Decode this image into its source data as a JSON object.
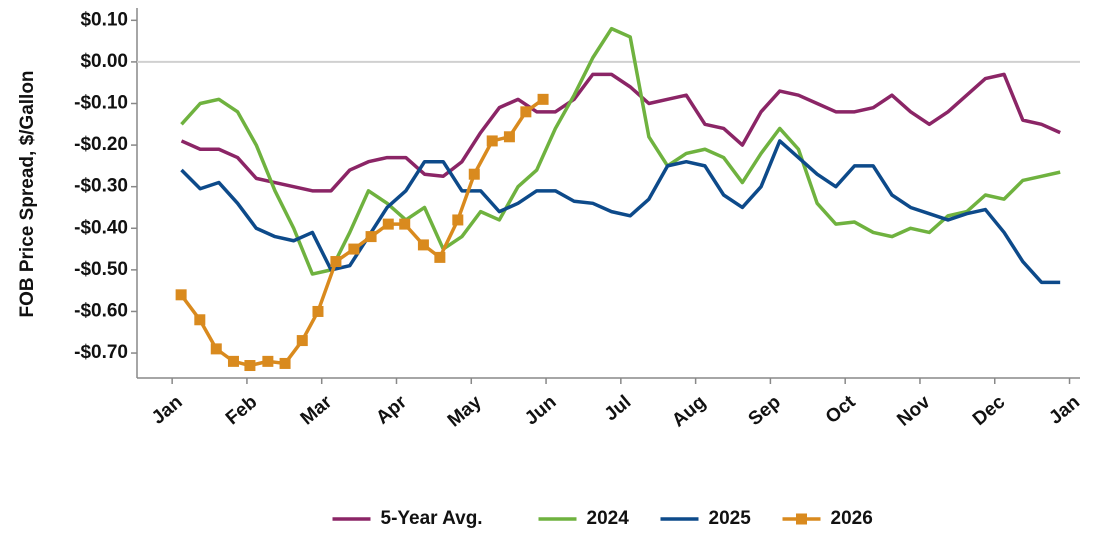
{
  "chart_data": {
    "type": "line",
    "y_label": "FOB Price Spread, $/Gallon",
    "xlim": [
      -0.47,
      12.14
    ],
    "xticks": [
      {
        "value": 0,
        "label": "Jan"
      },
      {
        "value": 1,
        "label": "Feb"
      },
      {
        "value": 2,
        "label": "Mar"
      },
      {
        "value": 3,
        "label": "Apr"
      },
      {
        "value": 4,
        "label": "May"
      },
      {
        "value": 5,
        "label": "Jun"
      },
      {
        "value": 6,
        "label": "Jul"
      },
      {
        "value": 7,
        "label": "Aug"
      },
      {
        "value": 8,
        "label": "Sep"
      },
      {
        "value": 9,
        "label": "Oct"
      },
      {
        "value": 10,
        "label": "Nov"
      },
      {
        "value": 11,
        "label": "Dec"
      },
      {
        "value": 12,
        "label": "Jan"
      }
    ],
    "ylim": [
      -0.76,
      0.12
    ],
    "yticks": [
      {
        "value": 0.1,
        "label": "$0.10"
      },
      {
        "value": 0,
        "label": "$0.00"
      },
      {
        "value": -0.1,
        "label": "-$0.10"
      },
      {
        "value": -0.2,
        "label": "-$0.20"
      },
      {
        "value": -0.3,
        "label": "-$0.30"
      },
      {
        "value": -0.4,
        "label": "-$0.40"
      },
      {
        "value": -0.5,
        "label": "-$0.50"
      },
      {
        "value": -0.6,
        "label": "-$0.60"
      },
      {
        "value": -0.7,
        "label": "-$0.70"
      }
    ],
    "zero_line": true,
    "legend": "bottom",
    "series": [
      {
        "name": "5-Year Avg.",
        "color": "#8b2566",
        "marker": false,
        "x": [
          0.125,
          0.375,
          0.625,
          0.875,
          1.125,
          1.375,
          1.625,
          1.875,
          2.125,
          2.375,
          2.625,
          2.875,
          3.125,
          3.375,
          3.625,
          3.875,
          4.125,
          4.375,
          4.625,
          4.875,
          5.125,
          5.375,
          5.625,
          5.875,
          6.125,
          6.375,
          6.625,
          6.875,
          7.125,
          7.375,
          7.625,
          7.875,
          8.125,
          8.375,
          8.625,
          8.875,
          9.125,
          9.375,
          9.625,
          9.875,
          10.125,
          10.375,
          10.625,
          10.875,
          11.125,
          11.375,
          11.625,
          11.875
        ],
        "values": [
          -0.19,
          -0.21,
          -0.21,
          -0.23,
          -0.28,
          -0.29,
          -0.3,
          -0.31,
          -0.31,
          -0.26,
          -0.24,
          -0.23,
          -0.23,
          -0.27,
          -0.275,
          -0.24,
          -0.17,
          -0.11,
          -0.09,
          -0.12,
          -0.12,
          -0.09,
          -0.03,
          -0.03,
          -0.06,
          -0.1,
          -0.09,
          -0.08,
          -0.15,
          -0.16,
          -0.2,
          -0.12,
          -0.07,
          -0.08,
          -0.1,
          -0.12,
          -0.12,
          -0.11,
          -0.08,
          -0.12,
          -0.15,
          -0.12,
          -0.08,
          -0.04,
          -0.03,
          -0.14,
          -0.15,
          -0.17
        ]
      },
      {
        "name": "2024",
        "color": "#6fb23f",
        "marker": false,
        "x": [
          0.125,
          0.375,
          0.625,
          0.875,
          1.125,
          1.375,
          1.625,
          1.875,
          2.125,
          2.375,
          2.625,
          2.875,
          3.125,
          3.375,
          3.625,
          3.875,
          4.125,
          4.375,
          4.625,
          4.875,
          5.125,
          5.375,
          5.625,
          5.875,
          6.125,
          6.375,
          6.625,
          6.875,
          7.125,
          7.375,
          7.625,
          7.875,
          8.125,
          8.375,
          8.625,
          8.875,
          9.125,
          9.375,
          9.625,
          9.875,
          10.125,
          10.375,
          10.625,
          10.875,
          11.125,
          11.375,
          11.625,
          11.875
        ],
        "values": [
          -0.15,
          -0.1,
          -0.09,
          -0.12,
          -0.2,
          -0.31,
          -0.4,
          -0.51,
          -0.5,
          -0.41,
          -0.31,
          -0.34,
          -0.38,
          -0.35,
          -0.45,
          -0.42,
          -0.36,
          -0.38,
          -0.3,
          -0.26,
          -0.16,
          -0.08,
          0.01,
          0.08,
          0.06,
          -0.18,
          -0.25,
          -0.22,
          -0.21,
          -0.23,
          -0.29,
          -0.22,
          -0.16,
          -0.21,
          -0.34,
          -0.39,
          -0.385,
          -0.41,
          -0.42,
          -0.4,
          -0.41,
          -0.37,
          -0.36,
          -0.32,
          -0.33,
          -0.285,
          -0.275,
          -0.265
        ]
      },
      {
        "name": "2025",
        "color": "#0d4a8a",
        "marker": false,
        "x": [
          0.125,
          0.375,
          0.625,
          0.875,
          1.125,
          1.375,
          1.625,
          1.875,
          2.125,
          2.375,
          2.625,
          2.875,
          3.125,
          3.375,
          3.625,
          3.875,
          4.125,
          4.375,
          4.625,
          4.875,
          5.125,
          5.375,
          5.625,
          5.875,
          6.125,
          6.375,
          6.625,
          6.875,
          7.125,
          7.375,
          7.625,
          7.875,
          8.125,
          8.375,
          8.625,
          8.875,
          9.125,
          9.375,
          9.625,
          9.875,
          10.125,
          10.375,
          10.625,
          10.875,
          11.125,
          11.375,
          11.625,
          11.875
        ],
        "values": [
          -0.26,
          -0.305,
          -0.29,
          -0.34,
          -0.4,
          -0.42,
          -0.43,
          -0.41,
          -0.5,
          -0.49,
          -0.42,
          -0.35,
          -0.31,
          -0.24,
          -0.24,
          -0.31,
          -0.31,
          -0.36,
          -0.34,
          -0.31,
          -0.31,
          -0.335,
          -0.34,
          -0.36,
          -0.37,
          -0.33,
          -0.25,
          -0.24,
          -0.25,
          -0.32,
          -0.35,
          -0.3,
          -0.19,
          -0.23,
          -0.27,
          -0.3,
          -0.25,
          -0.25,
          -0.32,
          -0.35,
          -0.365,
          -0.38,
          -0.365,
          -0.355,
          -0.41,
          -0.48,
          -0.53,
          -0.53
        ]
      },
      {
        "name": "2026",
        "color": "#d98a1e",
        "marker": true,
        "x": [
          0.12,
          0.37,
          0.59,
          0.82,
          1.04,
          1.28,
          1.51,
          1.74,
          1.95,
          2.19,
          2.43,
          2.66,
          2.89,
          3.11,
          3.36,
          3.58,
          3.82,
          4.04,
          4.28,
          4.51,
          4.73,
          4.96
        ],
        "values": [
          -0.56,
          -0.62,
          -0.69,
          -0.72,
          -0.73,
          -0.72,
          -0.725,
          -0.67,
          -0.6,
          -0.48,
          -0.45,
          -0.42,
          -0.39,
          -0.39,
          -0.44,
          -0.47,
          -0.38,
          -0.27,
          -0.19,
          -0.18,
          -0.12,
          -0.09
        ]
      }
    ]
  }
}
